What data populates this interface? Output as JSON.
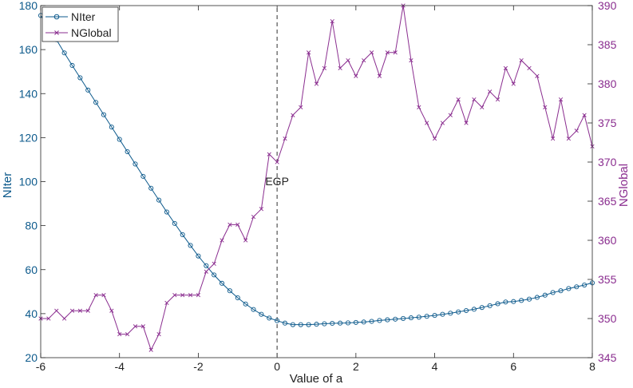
{
  "chart_data": {
    "type": "line",
    "xlabel": "Value of a",
    "ylabel_left": "NIter",
    "ylabel_right": "NGlobal",
    "xlim": [
      -6,
      8
    ],
    "ylim_left": [
      20,
      180
    ],
    "ylim_right": [
      345,
      390
    ],
    "xticks": [
      -6,
      -4,
      -2,
      0,
      2,
      4,
      6,
      8
    ],
    "yticks_left": [
      20,
      40,
      60,
      80,
      100,
      120,
      140,
      160,
      180
    ],
    "yticks_right": [
      345,
      350,
      355,
      360,
      365,
      370,
      375,
      380,
      385,
      390
    ],
    "grid": false,
    "legend_position": "top-left",
    "annotation": {
      "label": "EGP",
      "x": 0
    },
    "series": [
      {
        "name": "NIter",
        "axis": "left",
        "color": "#0d5a8c",
        "marker": "circle",
        "x": [
          -6,
          -5.8,
          -5.6,
          -5.4,
          -5.2,
          -5,
          -4.8,
          -4.6,
          -4.4,
          -4.2,
          -4,
          -3.8,
          -3.6,
          -3.4,
          -3.2,
          -3,
          -2.8,
          -2.6,
          -2.4,
          -2.2,
          -2,
          -1.8,
          -1.6,
          -1.4,
          -1.2,
          -1,
          -0.8,
          -0.6,
          -0.4,
          -0.2,
          0,
          0.2,
          0.4,
          0.6,
          0.8,
          1,
          1.2,
          1.4,
          1.6,
          1.8,
          2,
          2.2,
          2.4,
          2.6,
          2.8,
          3,
          3.2,
          3.4,
          3.6,
          3.8,
          4,
          4.2,
          4.4,
          4.6,
          4.8,
          5,
          5.2,
          5.4,
          5.6,
          5.8,
          6,
          6.2,
          6.4,
          6.6,
          6.8,
          7,
          7.2,
          7.4,
          7.6,
          7.8,
          8
        ],
        "values": [
          175.5,
          170,
          164.5,
          158.5,
          152.8,
          147.2,
          141.6,
          136,
          130.4,
          124.8,
          119.2,
          113.6,
          108,
          102.4,
          97,
          91.6,
          86.2,
          81,
          75.9,
          71,
          66.2,
          61.8,
          57.6,
          53.8,
          50.4,
          47.2,
          44.4,
          41.9,
          39.7,
          38,
          36.8,
          35.7,
          35,
          35,
          35,
          35.2,
          35.4,
          35.6,
          35.7,
          35.8,
          36,
          36.2,
          36.5,
          36.9,
          37.2,
          37.5,
          37.8,
          38.1,
          38.4,
          38.8,
          39.2,
          39.7,
          40.2,
          40.8,
          41.4,
          42,
          42.8,
          43.6,
          44.5,
          45.3,
          45.5,
          46,
          46.6,
          47.4,
          48.4,
          49.6,
          50.4,
          51.4,
          52.2,
          53,
          54
        ]
      },
      {
        "name": "NGlobal",
        "axis": "right",
        "color": "#8a2d8f",
        "marker": "x",
        "x": [
          -6,
          -5.8,
          -5.6,
          -5.4,
          -5.2,
          -5,
          -4.8,
          -4.6,
          -4.4,
          -4.2,
          -4,
          -3.8,
          -3.6,
          -3.4,
          -3.2,
          -3,
          -2.8,
          -2.6,
          -2.4,
          -2.2,
          -2,
          -1.8,
          -1.6,
          -1.4,
          -1.2,
          -1,
          -0.8,
          -0.6,
          -0.4,
          -0.2,
          0,
          0.2,
          0.4,
          0.6,
          0.8,
          1,
          1.2,
          1.4,
          1.6,
          1.8,
          2,
          2.2,
          2.4,
          2.6,
          2.8,
          3,
          3.2,
          3.4,
          3.6,
          3.8,
          4,
          4.2,
          4.4,
          4.6,
          4.8,
          5,
          5.2,
          5.4,
          5.6,
          5.8,
          6,
          6.2,
          6.4,
          6.6,
          6.8,
          7,
          7.2,
          7.4,
          7.6,
          7.8,
          8
        ],
        "values": [
          350,
          350,
          351,
          350,
          351,
          351,
          351,
          353,
          353,
          351,
          348,
          348,
          349,
          349,
          346,
          348,
          352,
          353,
          353,
          353,
          353,
          356,
          357,
          360,
          362,
          362,
          360,
          363,
          364,
          371,
          370,
          373,
          376,
          377,
          384,
          380,
          382,
          388,
          382,
          383,
          381,
          383,
          384,
          381,
          384,
          384,
          390,
          383,
          377,
          375,
          373,
          375,
          376,
          378,
          375,
          378,
          377,
          379,
          378,
          382,
          380,
          383,
          382,
          381,
          377,
          373,
          378,
          373,
          374,
          376,
          372
        ]
      }
    ]
  }
}
